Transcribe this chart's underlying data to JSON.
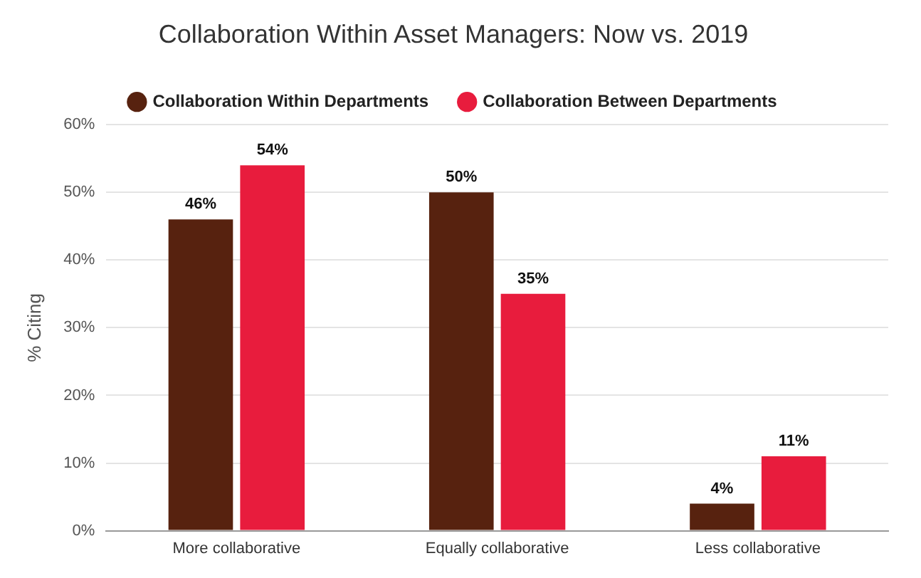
{
  "chart_data": {
    "type": "bar",
    "title": "Collaboration Within Asset Managers: Now vs. 2019",
    "ylabel": "% Citing",
    "categories": [
      "More collaborative",
      "Equally collaborative",
      "Less collaborative"
    ],
    "series": [
      {
        "name": "Collaboration Within Departments",
        "color": "#57220f",
        "values": [
          46,
          50,
          4
        ],
        "value_labels": [
          "46%",
          "50%",
          "4%"
        ]
      },
      {
        "name": "Collaboration Between Departments",
        "color": "#e81c3d",
        "values": [
          54,
          35,
          11
        ],
        "value_labels": [
          "54%",
          "35%",
          "11%"
        ]
      }
    ],
    "ylim": [
      0,
      60
    ],
    "yticks": [
      {
        "value": 0,
        "label": "0%"
      },
      {
        "value": 10,
        "label": "10%"
      },
      {
        "value": 20,
        "label": "20%"
      },
      {
        "value": 30,
        "label": "30%"
      },
      {
        "value": 40,
        "label": "40%"
      },
      {
        "value": 50,
        "label": "50%"
      },
      {
        "value": 60,
        "label": "60%"
      }
    ],
    "grid": "y",
    "legend": "top"
  }
}
